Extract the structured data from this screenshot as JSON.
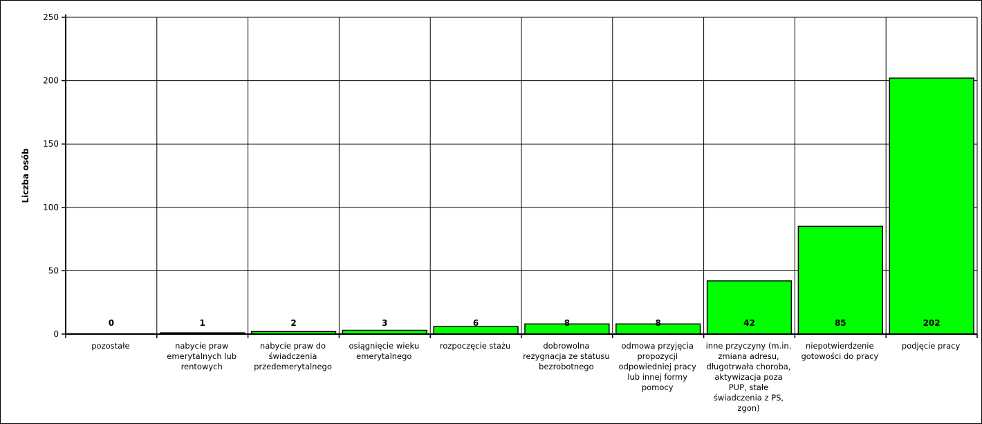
{
  "chart_data": {
    "type": "bar",
    "ylabel": "Liczba osób",
    "ylim": [
      0,
      250
    ],
    "yticks": [
      0,
      50,
      100,
      150,
      200,
      250
    ],
    "grid": true,
    "bar_color": "#00ff00",
    "categories": [
      "pozostałe",
      "nabycie praw emerytalnych lub rentowych",
      "nabycie praw do świadczenia przedemerytalnego",
      "osiągnięcie wieku emerytalnego",
      "rozpoczęcie stażu",
      "dobrowolna rezygnacja ze statusu bezrobotnego",
      "odmowa przyjęcia propozycji odpowiedniej pracy lub innej formy pomocy",
      "inne przyczyny (m.in. zmiana adresu, długotrwała choroba, aktywizacja poza PUP, stałe świadczenia z PS, zgon)",
      "niepotwierdzenie gotowości do pracy",
      "podjęcie pracy"
    ],
    "values": [
      0,
      1,
      2,
      3,
      6,
      8,
      8,
      42,
      85,
      202
    ],
    "data_labels": [
      "0",
      "1",
      "2",
      "3",
      "6",
      "8",
      "8",
      "42",
      "85",
      "202"
    ]
  }
}
